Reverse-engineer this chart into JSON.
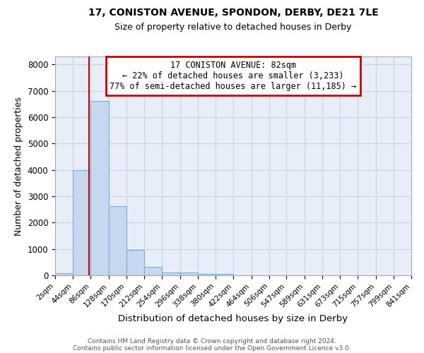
{
  "title1": "17, CONISTON AVENUE, SPONDON, DERBY, DE21 7LE",
  "title2": "Size of property relative to detached houses in Derby",
  "xlabel": "Distribution of detached houses by size in Derby",
  "ylabel": "Number of detached properties",
  "bin_edges": [
    2,
    44,
    86,
    128,
    170,
    212,
    254,
    296,
    338,
    380,
    422,
    464,
    506,
    547,
    589,
    631,
    673,
    715,
    757,
    799,
    841
  ],
  "bar_heights": [
    75,
    4000,
    6600,
    2620,
    960,
    310,
    120,
    100,
    60,
    60,
    0,
    0,
    0,
    0,
    0,
    0,
    0,
    0,
    0,
    0
  ],
  "bar_color": "#c5d8f0",
  "bar_edge_color": "#7aaed6",
  "property_size": 82,
  "red_line_color": "#cc0000",
  "annotation_line1": "17 CONISTON AVENUE: 82sqm",
  "annotation_line2": "← 22% of detached houses are smaller (3,233)",
  "annotation_line3": "77% of semi-detached houses are larger (11,185) →",
  "annotation_box_color": "#cc0000",
  "ylim": [
    0,
    8300
  ],
  "yticks": [
    0,
    1000,
    2000,
    3000,
    4000,
    5000,
    6000,
    7000,
    8000
  ],
  "grid_color": "#c8d4e8",
  "bg_color": "#e8eef8",
  "footnote1": "Contains HM Land Registry data © Crown copyright and database right 2024.",
  "footnote2": "Contains public sector information licensed under the Open Government Licence v3.0."
}
